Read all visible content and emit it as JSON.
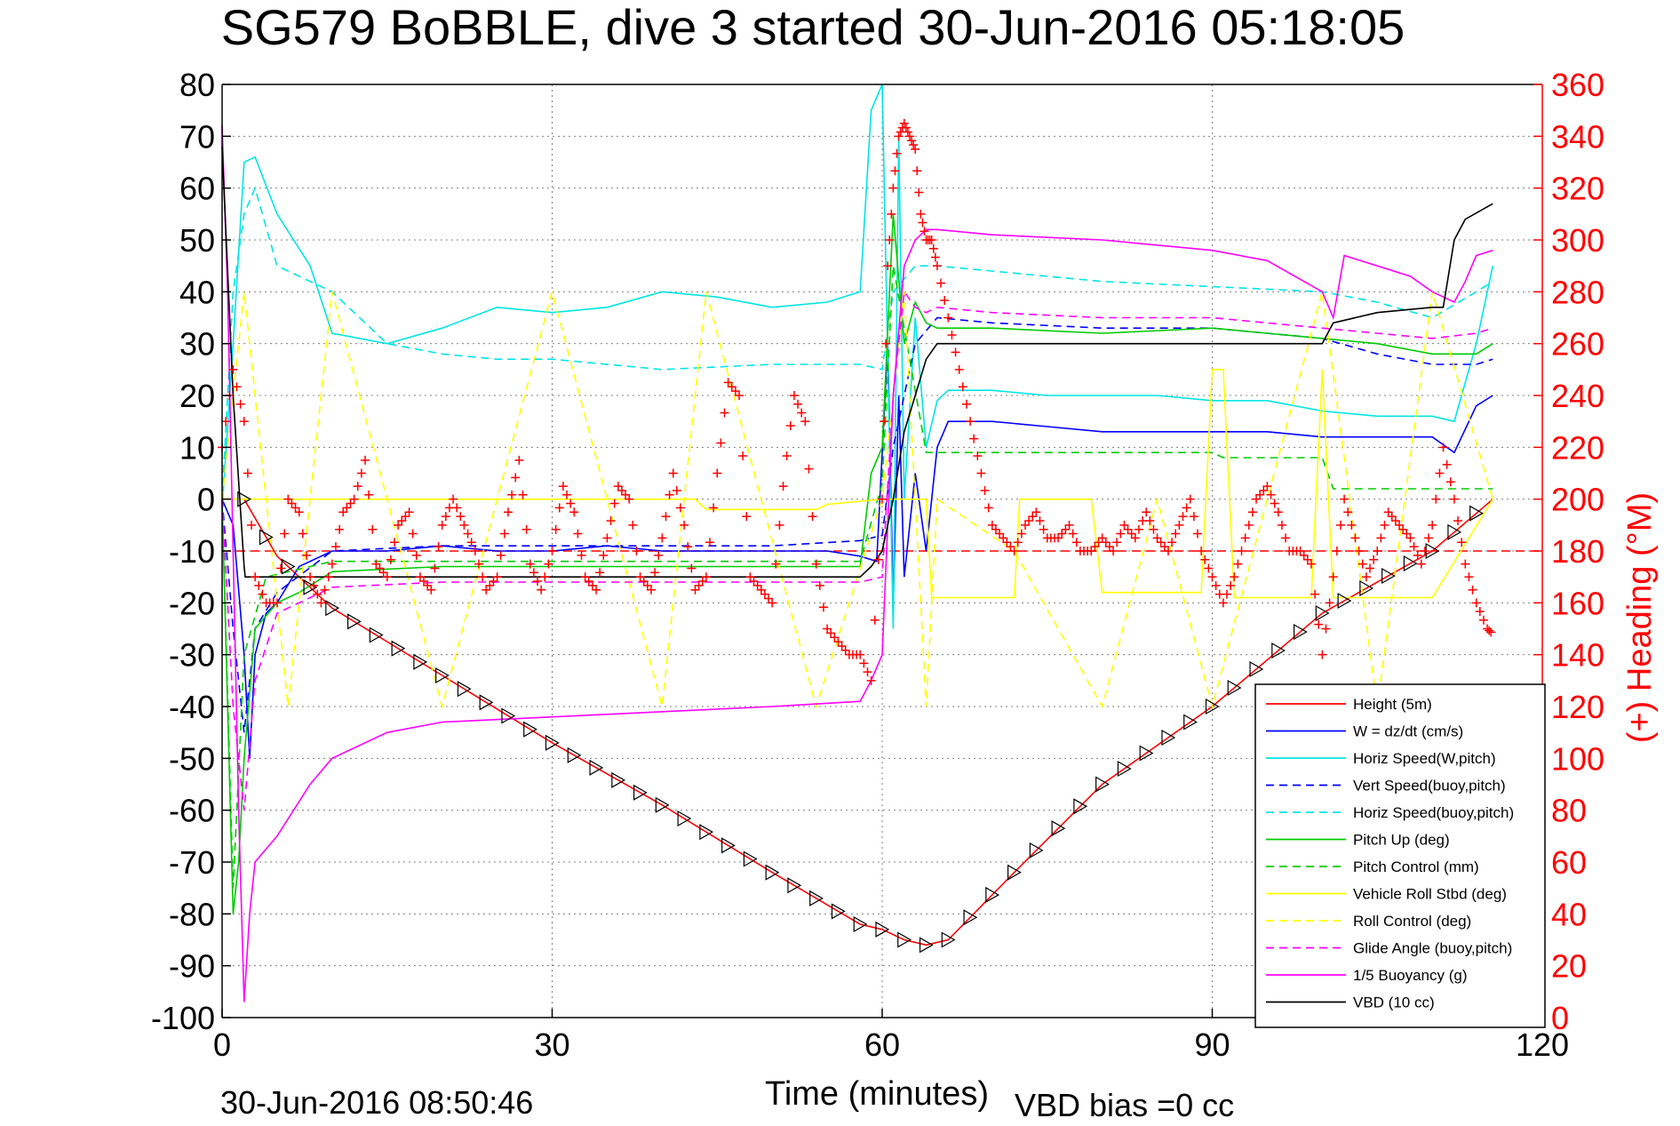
{
  "chart_data": {
    "type": "line",
    "title": "SG579 BoBBLE, dive 3 started 30-Jun-2016 05:18:05",
    "xlabel": "Time (minutes)",
    "ylabel": "",
    "y2label": "(+) Heading (°M)",
    "footer_left": "30-Jun-2016 08:50:46",
    "footer_right": "VBD bias =0 cc",
    "xlim": [
      0,
      120
    ],
    "ylim": [
      -100,
      80
    ],
    "y2lim": [
      0,
      360
    ],
    "xticks": [
      0,
      30,
      60,
      90,
      120
    ],
    "yticks": [
      -100,
      -90,
      -80,
      -70,
      -60,
      -50,
      -40,
      -30,
      -20,
      -10,
      0,
      10,
      20,
      30,
      40,
      50,
      60,
      70,
      80
    ],
    "y2ticks": [
      0,
      20,
      40,
      60,
      80,
      100,
      120,
      140,
      160,
      180,
      200,
      220,
      240,
      260,
      280,
      300,
      320,
      340,
      360
    ],
    "grid": true,
    "legend_position": "bottom-right",
    "colors": {
      "red": "#ff0000",
      "blue": "#0000ff",
      "cyan": "#00e5e5",
      "green": "#00cc00",
      "yellow": "#ffff00",
      "magenta": "#ff00ff",
      "black": "#000000"
    },
    "heading_reference": 180,
    "series": [
      {
        "name": "Height (5m)",
        "color": "#ff0000",
        "dash": false,
        "x": [
          0,
          2,
          5,
          10,
          20,
          30,
          40,
          50,
          58,
          60,
          62,
          64,
          66,
          72,
          80,
          90,
          100,
          110,
          115.5
        ],
        "y": [
          0,
          0,
          -11,
          -21,
          -34,
          -47,
          -59,
          -72,
          -82,
          -83,
          -85,
          -86,
          -85,
          -72,
          -55,
          -40,
          -22,
          -10,
          0
        ]
      },
      {
        "name": "W = dz/dt (cm/s)",
        "color": "#0000ff",
        "dash": false,
        "x": [
          0,
          1,
          2,
          2.5,
          3,
          4,
          5,
          7,
          10,
          15,
          20,
          25,
          30,
          35,
          40,
          45,
          50,
          55,
          58,
          59.5,
          60.5,
          61,
          61.5,
          62,
          63,
          64,
          65,
          66,
          70,
          75,
          80,
          85,
          90,
          95,
          100,
          105,
          110,
          112,
          114,
          115.5
        ],
        "y": [
          0,
          -5,
          -30,
          -50,
          -30,
          -22,
          -20,
          -13,
          -10,
          -10,
          -9,
          -10,
          -10,
          -9,
          -10,
          -10,
          -10,
          -10,
          -11,
          -12,
          30,
          -20,
          20,
          -15,
          5,
          -10,
          10,
          15,
          15,
          14,
          13,
          13,
          13,
          13,
          12,
          12,
          12,
          9,
          18,
          20
        ]
      },
      {
        "name": "Horiz Speed(W,pitch)",
        "color": "#00e5e5",
        "dash": false,
        "x": [
          0,
          1,
          2,
          3,
          5,
          8,
          10,
          15,
          20,
          25,
          30,
          35,
          40,
          45,
          50,
          55,
          58,
          59,
          60,
          61,
          61.5,
          62,
          63,
          64,
          65,
          66,
          70,
          75,
          80,
          85,
          90,
          95,
          100,
          105,
          110,
          112,
          114,
          115.5
        ],
        "y": [
          -2,
          30,
          65,
          66,
          55,
          45,
          32,
          30,
          33,
          37,
          36,
          37,
          40,
          39,
          37,
          38,
          40,
          75,
          80,
          -25,
          70,
          0,
          35,
          10,
          19,
          21,
          21,
          20,
          20,
          20,
          19,
          19,
          17,
          16,
          16,
          15,
          30,
          45
        ]
      },
      {
        "name": "Vert Speed(buoy,pitch)",
        "color": "#0000ff",
        "dash": true,
        "x": [
          0,
          1,
          2,
          3,
          5,
          10,
          20,
          30,
          40,
          50,
          58,
          60,
          61,
          63,
          65,
          70,
          80,
          90,
          100,
          105,
          110,
          114,
          115.5
        ],
        "y": [
          0,
          -25,
          -45,
          -25,
          -18,
          -10,
          -9,
          -9,
          -9,
          -9,
          -8,
          -7,
          10,
          30,
          35,
          34,
          33,
          33,
          31,
          28,
          26,
          26,
          27
        ]
      },
      {
        "name": "Horiz Speed(buoy,pitch)",
        "color": "#00e5e5",
        "dash": true,
        "x": [
          0,
          1,
          2,
          3,
          5,
          10,
          15,
          20,
          25,
          30,
          40,
          50,
          58,
          60,
          61,
          63,
          65,
          70,
          80,
          90,
          100,
          105,
          110,
          114,
          115.5
        ],
        "y": [
          0,
          40,
          55,
          60,
          45,
          40,
          30,
          28,
          27,
          27,
          25,
          26,
          26,
          25,
          40,
          45,
          45,
          44,
          42,
          41,
          40,
          38,
          35,
          40,
          42
        ]
      },
      {
        "name": "Pitch Up (deg)",
        "color": "#00cc00",
        "dash": false,
        "x": [
          0,
          1,
          1.5,
          2,
          3,
          5,
          7,
          10,
          20,
          30,
          40,
          50,
          58,
          59,
          60,
          61,
          62,
          63,
          64,
          65,
          70,
          80,
          90,
          100,
          105,
          110,
          114,
          115.5
        ],
        "y": [
          0,
          -80,
          -70,
          -50,
          -25,
          -20,
          -18,
          -14,
          -13,
          -13,
          -13,
          -13,
          -13,
          5,
          10,
          55,
          30,
          38,
          34,
          33,
          33,
          32,
          33,
          31,
          30,
          28,
          28,
          30
        ]
      },
      {
        "name": "Pitch Control (mm)",
        "color": "#00cc00",
        "dash": true,
        "x": [
          0,
          1,
          2,
          4,
          10,
          20,
          30,
          40,
          50,
          58,
          60,
          61,
          64,
          70,
          80,
          90,
          91,
          100,
          101,
          110,
          115.5
        ],
        "y": [
          0,
          -75,
          -30,
          -15,
          -12,
          -12,
          -12,
          -12,
          -12,
          -12,
          3,
          45,
          9,
          9,
          9,
          9,
          8,
          8,
          2,
          2,
          2
        ]
      },
      {
        "name": "Vehicle Roll Stbd (deg)",
        "color": "#ffff00",
        "dash": false,
        "x": [
          0,
          5,
          10,
          20,
          30,
          43,
          44,
          54,
          55,
          60,
          64,
          64.5,
          72,
          72.5,
          79,
          80,
          89,
          90,
          91,
          92,
          99,
          100,
          101,
          110,
          115.5
        ],
        "y": [
          0,
          0,
          0,
          0,
          0,
          0,
          -2,
          -2,
          -1,
          0,
          0,
          -19,
          -19,
          0,
          0,
          -18,
          -18,
          25,
          25,
          -19,
          -19,
          25,
          -19,
          -19,
          0
        ]
      },
      {
        "name": "Roll Control (deg)",
        "color": "#ffff00",
        "dash": true,
        "x": [
          0,
          2,
          6,
          10,
          20,
          30,
          40,
          44,
          54,
          60,
          62,
          64,
          65,
          72,
          80,
          85,
          90,
          95,
          100,
          105,
          110,
          115.5
        ],
        "y": [
          0,
          40,
          -40,
          40,
          -40,
          40,
          -40,
          40,
          -40,
          0,
          40,
          -40,
          0,
          -10,
          -40,
          0,
          -40,
          0,
          40,
          -40,
          40,
          0
        ]
      },
      {
        "name": "Glide Angle (buoy,pitch)",
        "color": "#ff00ff",
        "dash": true,
        "x": [
          0,
          1,
          2,
          3,
          5,
          10,
          20,
          30,
          40,
          50,
          58,
          60,
          61,
          62,
          63,
          64,
          65,
          70,
          80,
          90,
          100,
          105,
          110,
          114,
          115.5
        ],
        "y": [
          0,
          -40,
          -60,
          -35,
          -22,
          -17,
          -16,
          -16,
          -16,
          -16,
          -16,
          -15,
          20,
          40,
          37,
          36,
          37,
          36,
          35,
          35,
          33,
          32,
          31,
          32,
          33
        ]
      },
      {
        "name": "1/5 Buoyancy (g)",
        "color": "#ff00ff",
        "dash": false,
        "x": [
          0,
          0.5,
          1,
          1.5,
          2,
          2.5,
          3,
          5,
          8,
          10,
          15,
          20,
          30,
          40,
          50,
          58,
          59,
          60,
          61,
          62,
          63,
          64,
          65,
          70,
          80,
          90,
          95,
          100,
          101,
          102,
          105,
          108,
          110,
          112,
          113,
          114,
          115.5
        ],
        "y": [
          72,
          40,
          -10,
          -60,
          -97,
          -80,
          -70,
          -65,
          -55,
          -50,
          -45,
          -43,
          -42,
          -41,
          -40,
          -39,
          -35,
          -30,
          20,
          45,
          50,
          52,
          52,
          51,
          50,
          48,
          46,
          40,
          35,
          47,
          45,
          43,
          40,
          38,
          42,
          47,
          48
        ]
      },
      {
        "name": "VBD (10 cc)",
        "color": "#000000",
        "dash": false,
        "x": [
          0,
          1,
          2,
          2.1,
          5,
          10,
          20,
          30,
          40,
          50,
          58,
          59,
          60,
          61,
          62,
          63,
          64,
          65,
          70,
          80,
          90,
          95,
          100,
          101,
          105,
          110,
          111,
          112,
          113,
          115.5
        ],
        "y": [
          68,
          20,
          -13,
          -15,
          -15,
          -15,
          -15,
          -15,
          -15,
          -15,
          -15,
          -13,
          -10,
          0,
          13,
          20,
          27,
          30,
          30,
          30,
          30,
          30,
          30,
          34,
          36,
          37,
          37,
          50,
          54,
          57
        ]
      }
    ],
    "heading_series": {
      "name": "(+) Heading",
      "color": "#ff0000",
      "x": [
        0,
        1,
        2,
        3,
        4,
        5,
        6,
        7,
        8,
        9,
        10,
        11,
        12,
        13,
        14,
        15,
        16,
        17,
        18,
        19,
        20,
        21,
        22,
        23,
        24,
        25,
        26,
        27,
        28,
        29,
        30,
        31,
        32,
        33,
        34,
        35,
        36,
        37,
        38,
        39,
        40,
        41,
        42,
        43,
        44,
        45,
        46,
        47,
        48,
        49,
        50,
        51,
        52,
        53,
        54,
        55,
        56,
        57,
        58,
        59,
        60,
        60.5,
        61,
        61.5,
        62,
        62.5,
        63,
        63.5,
        64,
        64.5,
        65,
        66,
        67,
        68,
        69,
        70,
        71,
        72,
        73,
        74,
        75,
        76,
        77,
        78,
        79,
        80,
        81,
        82,
        83,
        84,
        85,
        86,
        87,
        88,
        89,
        90,
        91,
        92,
        93,
        94,
        95,
        96,
        97,
        98,
        99,
        100,
        101,
        102,
        103,
        104,
        105,
        106,
        107,
        108,
        109,
        110,
        111,
        112,
        113,
        114,
        115,
        115.5
      ],
      "y": [
        220,
        250,
        230,
        170,
        160,
        160,
        200,
        195,
        170,
        160,
        175,
        195,
        200,
        215,
        175,
        170,
        190,
        195,
        170,
        165,
        190,
        200,
        190,
        180,
        165,
        170,
        195,
        215,
        175,
        165,
        180,
        205,
        195,
        170,
        165,
        185,
        205,
        200,
        170,
        165,
        185,
        210,
        190,
        165,
        170,
        210,
        245,
        240,
        170,
        165,
        160,
        205,
        240,
        230,
        175,
        150,
        145,
        140,
        140,
        130,
        200,
        290,
        320,
        340,
        345,
        340,
        335,
        310,
        300,
        300,
        290,
        270,
        250,
        230,
        210,
        190,
        185,
        180,
        190,
        195,
        185,
        185,
        190,
        180,
        180,
        185,
        180,
        190,
        185,
        195,
        185,
        180,
        190,
        200,
        180,
        170,
        160,
        170,
        185,
        200,
        205,
        195,
        180,
        180,
        175,
        140,
        170,
        200,
        185,
        170,
        180,
        195,
        190,
        185,
        175,
        190,
        220,
        200,
        175,
        160,
        150,
        148
      ]
    }
  }
}
